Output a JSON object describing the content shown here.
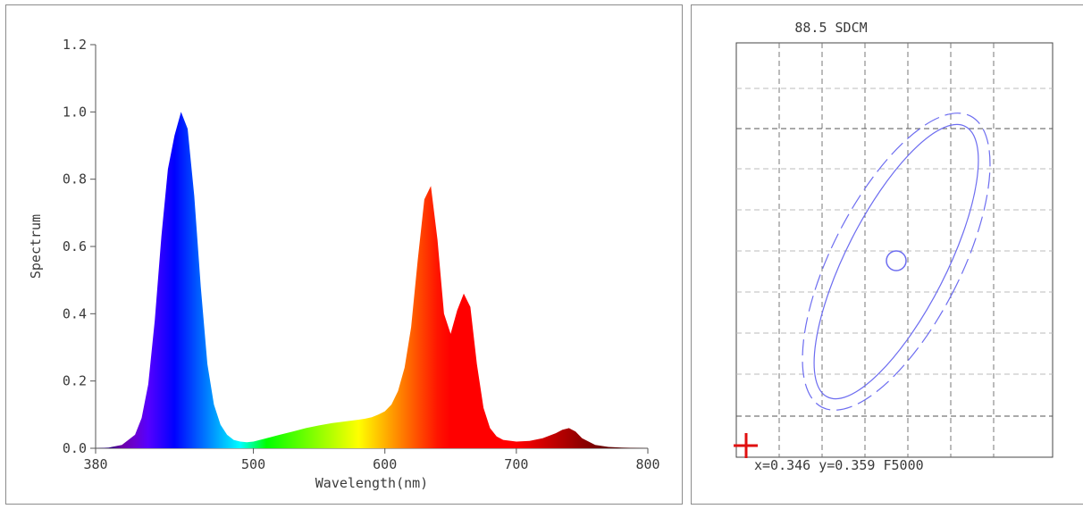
{
  "chart_data": [
    {
      "type": "area",
      "title": "",
      "xlabel": "Wavelength(nm)",
      "ylabel": "Spectrum",
      "xlim": [
        380,
        800
      ],
      "ylim": [
        0,
        1.2
      ],
      "x_tick_labels": [
        "380",
        "500",
        "600",
        "700",
        "800"
      ],
      "x_ticks": [
        380,
        500,
        600,
        700,
        800
      ],
      "y_tick_labels": [
        "0.0",
        "0.2",
        "0.4",
        "0.6",
        "0.8",
        "1.0",
        "1.2"
      ],
      "y_ticks": [
        0,
        0.2,
        0.4,
        0.6,
        0.8,
        1.0,
        1.2
      ],
      "fill": "visible-spectrum gradient",
      "series": [
        {
          "x": [
            380,
            390,
            400,
            410,
            415,
            420,
            425,
            430,
            435,
            440,
            445,
            450,
            455,
            460,
            465,
            470,
            475,
            480,
            485,
            490,
            495,
            500,
            510,
            520,
            530,
            540,
            550,
            560,
            570,
            580,
            585,
            590,
            595,
            600,
            605,
            610,
            615,
            620,
            625,
            630,
            635,
            640,
            645,
            650,
            655,
            660,
            665,
            670,
            675,
            680,
            685,
            690,
            700,
            710,
            720,
            730,
            735,
            740,
            745,
            750,
            760,
            770,
            780,
            790,
            800
          ],
          "values": [
            0,
            0.002,
            0.01,
            0.04,
            0.09,
            0.19,
            0.38,
            0.63,
            0.83,
            0.93,
            1.0,
            0.95,
            0.75,
            0.48,
            0.25,
            0.13,
            0.07,
            0.04,
            0.025,
            0.02,
            0.018,
            0.02,
            0.03,
            0.04,
            0.05,
            0.06,
            0.068,
            0.075,
            0.08,
            0.085,
            0.088,
            0.092,
            0.1,
            0.11,
            0.13,
            0.17,
            0.24,
            0.36,
            0.56,
            0.74,
            0.78,
            0.62,
            0.4,
            0.34,
            0.41,
            0.46,
            0.42,
            0.25,
            0.12,
            0.06,
            0.035,
            0.025,
            0.02,
            0.022,
            0.03,
            0.045,
            0.055,
            0.06,
            0.05,
            0.03,
            0.01,
            0.004,
            0.002,
            0.001,
            0
          ]
        }
      ]
    },
    {
      "type": "scatter",
      "title": "88.5 SDCM",
      "readout": "x=0.346 y=0.359 F5000",
      "grid": true,
      "ellipse_colour": "#6d6df0",
      "marker_colour": "#e01010"
    }
  ]
}
